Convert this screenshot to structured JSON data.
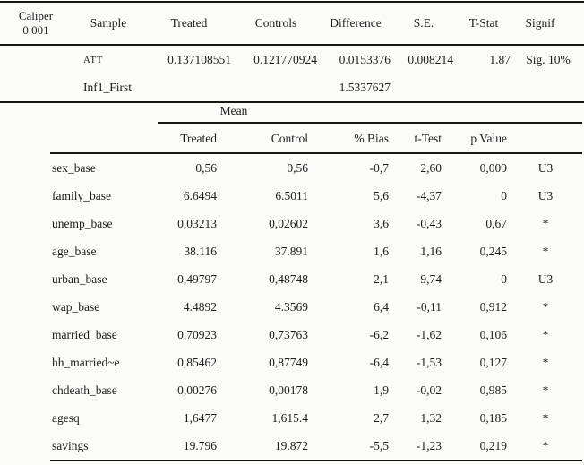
{
  "top_table": {
    "caliper_label_line1": "Caliper",
    "caliper_label_line2": "0.001",
    "headers": {
      "sample": "Sample",
      "treated": "Treated",
      "controls": "Controls",
      "difference": "Difference",
      "se": "S.E.",
      "t_stat": "T-Stat",
      "signif": "Signif"
    },
    "rows": [
      {
        "sample": "ATT",
        "treated": "0.137108551",
        "controls": "0.121770924",
        "difference": "0.0153376",
        "se": "0.008214",
        "t_stat": "1.87",
        "signif": "Sig. 10%"
      },
      {
        "sample": "Inf1_First",
        "difference": "1.5337627"
      }
    ]
  },
  "balance_table": {
    "group_header": "Mean",
    "headers": {
      "treated": "Treated",
      "control": "Control",
      "bias": "% Bias",
      "t_test": "t-Test",
      "p_value": "p Value"
    },
    "rows": [
      {
        "variable": "sex_base",
        "treated": "0,56",
        "control": "0,56",
        "bias": "-0,7",
        "t_test": "2,60",
        "p_value": "0,009",
        "flag": "U3"
      },
      {
        "variable": "family_base",
        "treated": "6.6494",
        "control": "6.5011",
        "bias": "5,6",
        "t_test": "-4,37",
        "p_value": "0",
        "flag": "U3"
      },
      {
        "variable": "unemp_base",
        "treated": "0,03213",
        "control": "0,02602",
        "bias": "3,6",
        "t_test": "-0,43",
        "p_value": "0,67",
        "flag": "*"
      },
      {
        "variable": "age_base",
        "treated": "38.116",
        "control": "37.891",
        "bias": "1,6",
        "t_test": "1,16",
        "p_value": "0,245",
        "flag": "*"
      },
      {
        "variable": "urban_base",
        "treated": "0,49797",
        "control": "0,48748",
        "bias": "2,1",
        "t_test": "9,74",
        "p_value": "0",
        "flag": "U3"
      },
      {
        "variable": "wap_base",
        "treated": "4.4892",
        "control": "4.3569",
        "bias": "6,4",
        "t_test": "-0,11",
        "p_value": "0,912",
        "flag": "*"
      },
      {
        "variable": "married_base",
        "treated": "0,70923",
        "control": "0,73763",
        "bias": "-6,2",
        "t_test": "-1,62",
        "p_value": "0,106",
        "flag": "*"
      },
      {
        "variable": "hh_married~e",
        "treated": "0,85462",
        "control": "0,87749",
        "bias": "-6,4",
        "t_test": "-1,53",
        "p_value": "0,127",
        "flag": "*"
      },
      {
        "variable": "chdeath_base",
        "treated": "0,00276",
        "control": "0,00178",
        "bias": "1,9",
        "t_test": "-0,02",
        "p_value": "0,985",
        "flag": "*"
      },
      {
        "variable": "agesq",
        "treated": "1,6477",
        "control": "1,615.4",
        "bias": "2,7",
        "t_test": "1,32",
        "p_value": "0,185",
        "flag": "*"
      },
      {
        "variable": "savings",
        "treated": "19.796",
        "control": "19.872",
        "bias": "-5,5",
        "t_test": "-1,23",
        "p_value": "0,219",
        "flag": "*"
      }
    ]
  }
}
